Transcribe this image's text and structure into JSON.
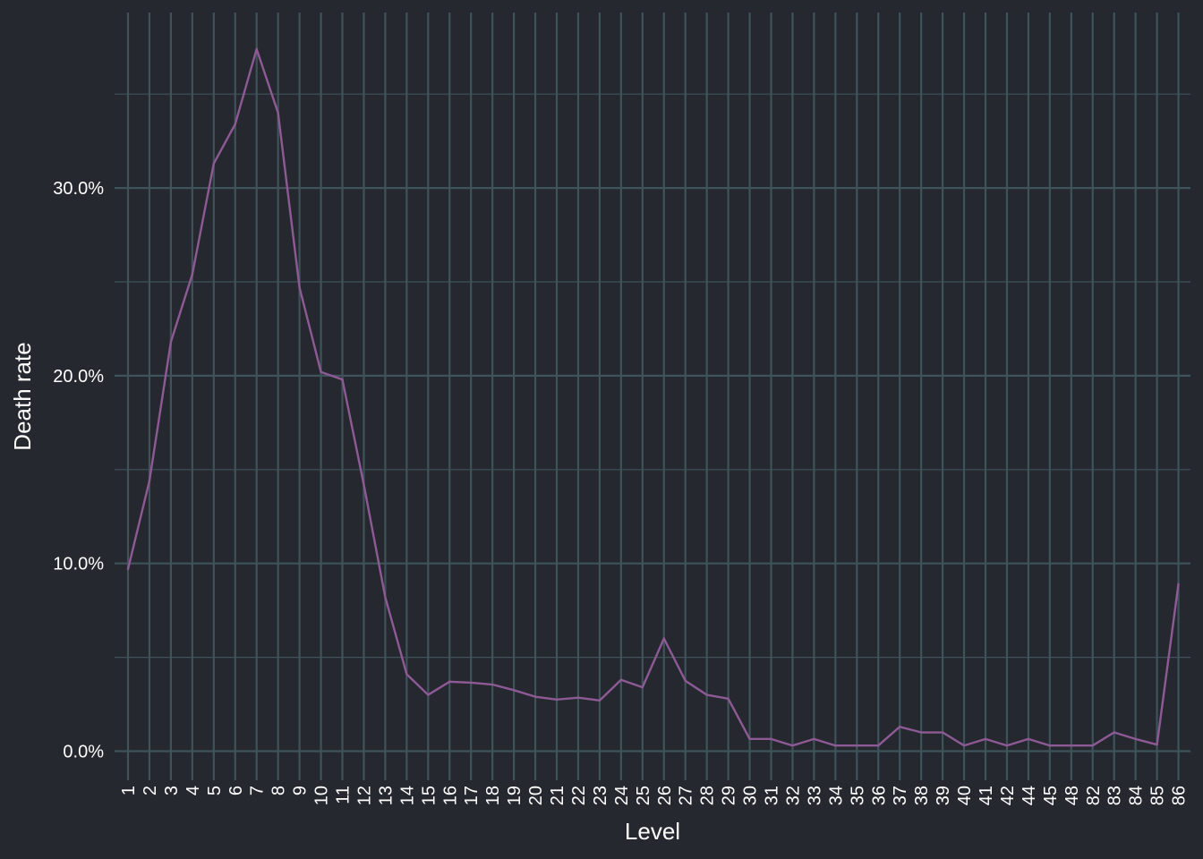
{
  "chart_data": {
    "type": "line",
    "title": "",
    "xlabel": "Level",
    "ylabel": "Death rate",
    "y_tick_labels": [
      "0.0%",
      "10.0%",
      "20.0%",
      "30.0%"
    ],
    "y_ticks": [
      0,
      10,
      20,
      30
    ],
    "ylim": [
      -1.5,
      39
    ],
    "grid": true,
    "categories": [
      "1",
      "2",
      "3",
      "4",
      "5",
      "6",
      "7",
      "8",
      "9",
      "10",
      "11",
      "12",
      "13",
      "14",
      "15",
      "16",
      "17",
      "18",
      "19",
      "20",
      "21",
      "22",
      "23",
      "24",
      "25",
      "26",
      "27",
      "28",
      "29",
      "30",
      "31",
      "32",
      "33",
      "34",
      "35",
      "36",
      "37",
      "38",
      "39",
      "40",
      "41",
      "42",
      "44",
      "45",
      "48",
      "82",
      "83",
      "84",
      "85",
      "86"
    ],
    "series": [
      {
        "values": [
          9.7,
          14.4,
          21.8,
          25.4,
          31.3,
          33.4,
          37.4,
          34.0,
          24.7,
          20.2,
          19.8,
          14.2,
          8.2,
          4.1,
          3.0,
          3.7,
          3.65,
          3.55,
          3.25,
          2.9,
          2.75,
          2.85,
          2.7,
          3.8,
          3.4,
          6.0,
          3.75,
          3.0,
          2.8,
          0.65,
          0.65,
          0.3,
          0.65,
          0.3,
          0.3,
          0.3,
          1.3,
          1.0,
          1.0,
          0.3,
          0.65,
          0.3,
          0.65,
          0.3,
          0.3,
          0.3,
          1.0,
          0.65,
          0.35,
          8.9
        ],
        "color": "#8e5a96"
      }
    ],
    "colors": {
      "background": "#25282e",
      "grid": "#3f535b",
      "text": "#ffffff",
      "line": "#8e5a96"
    }
  }
}
